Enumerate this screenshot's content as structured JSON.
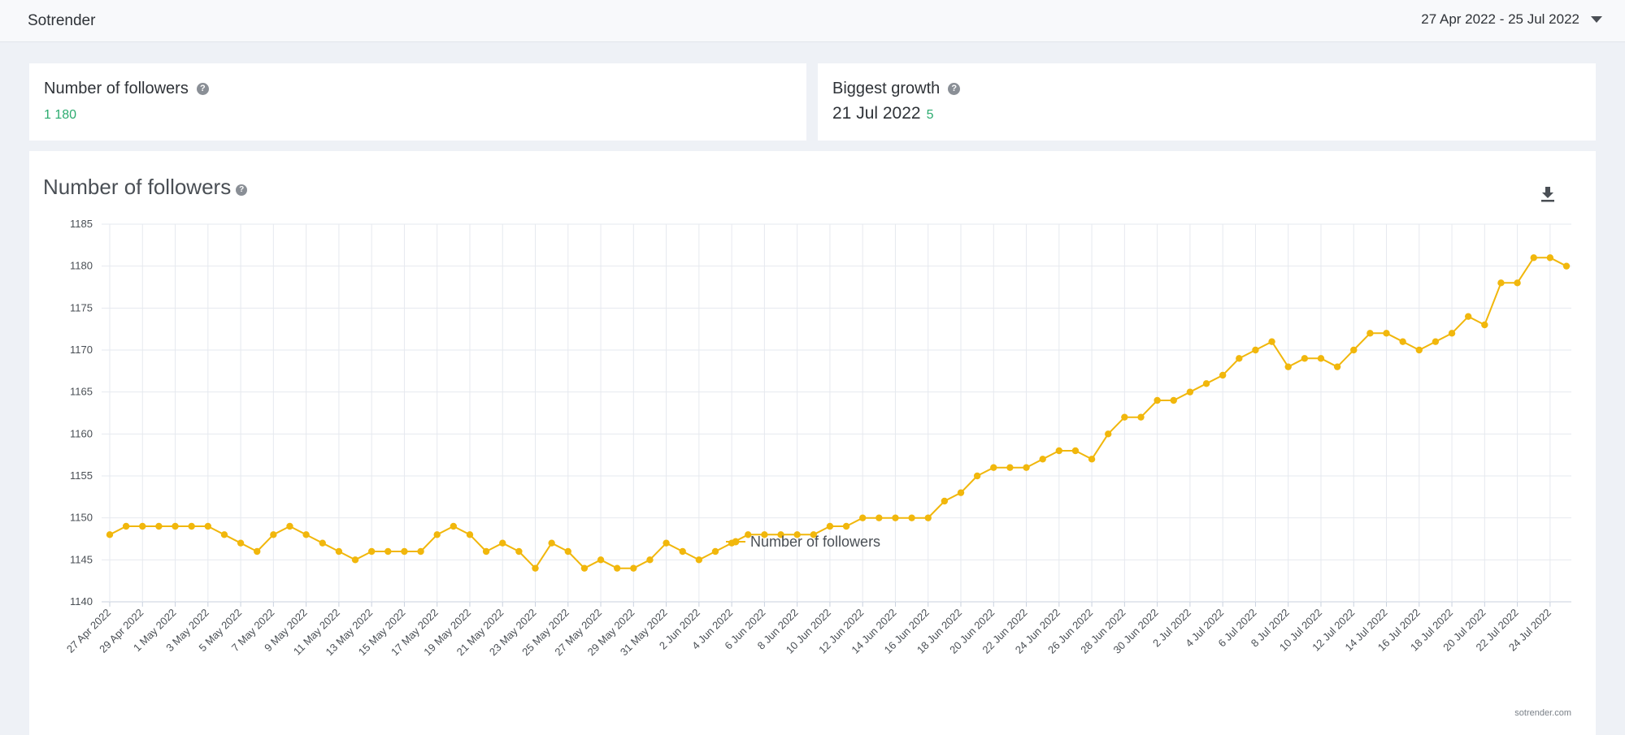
{
  "header": {
    "brand": "Sotrender",
    "date_range": "27 Apr 2022 - 25 Jul 2022"
  },
  "stats": {
    "followers_title": "Number of followers",
    "followers_value": "1 180",
    "growth_title": "Biggest growth",
    "growth_date": "21 Jul 2022",
    "growth_delta": "5"
  },
  "chart_card": {
    "title": "Number of followers",
    "download_icon": "download-icon",
    "credit": "sotrender.com"
  },
  "colors": {
    "series": "#f1b70c",
    "positive": "#2cab6f",
    "grid": "#e6e9ef"
  },
  "chart_data": {
    "type": "line",
    "title": "Number of followers",
    "xlabel": "",
    "ylabel": "",
    "ylim": [
      1140,
      1185
    ],
    "yticks": [
      1140,
      1145,
      1150,
      1155,
      1160,
      1165,
      1170,
      1175,
      1180,
      1185
    ],
    "grid": true,
    "legend": "bottom-center",
    "x_tick_labels": [
      "27 Apr 2022",
      "29 Apr 2022",
      "1 May 2022",
      "3 May 2022",
      "5 May 2022",
      "7 May 2022",
      "9 May 2022",
      "11 May 2022",
      "13 May 2022",
      "15 May 2022",
      "17 May 2022",
      "19 May 2022",
      "21 May 2022",
      "23 May 2022",
      "25 May 2022",
      "27 May 2022",
      "29 May 2022",
      "31 May 2022",
      "2 Jun 2022",
      "4 Jun 2022",
      "6 Jun 2022",
      "8 Jun 2022",
      "10 Jun 2022",
      "12 Jun 2022",
      "14 Jun 2022",
      "16 Jun 2022",
      "18 Jun 2022",
      "20 Jun 2022",
      "22 Jun 2022",
      "24 Jun 2022",
      "26 Jun 2022",
      "28 Jun 2022",
      "30 Jun 2022",
      "2 Jul 2022",
      "4 Jul 2022",
      "6 Jul 2022",
      "8 Jul 2022",
      "10 Jul 2022",
      "12 Jul 2022",
      "14 Jul 2022",
      "16 Jul 2022",
      "18 Jul 2022",
      "20 Jul 2022",
      "22 Jul 2022",
      "24 Jul 2022"
    ],
    "x_start": "27 Apr 2022",
    "x_end": "25 Jul 2022",
    "series": [
      {
        "name": "Number of followers",
        "color": "#f1b70c",
        "values": [
          1148,
          1149,
          1149,
          1149,
          1149,
          1149,
          1149,
          1148,
          1147,
          1146,
          1148,
          1149,
          1148,
          1147,
          1146,
          1145,
          1146,
          1146,
          1146,
          1146,
          1148,
          1149,
          1148,
          1146,
          1147,
          1146,
          1144,
          1147,
          1146,
          1144,
          1145,
          1144,
          1144,
          1145,
          1147,
          1146,
          1145,
          1146,
          1147,
          1148,
          1148,
          1148,
          1148,
          1148,
          1149,
          1149,
          1150,
          1150,
          1150,
          1150,
          1150,
          1152,
          1153,
          1155,
          1156,
          1156,
          1156,
          1157,
          1158,
          1158,
          1157,
          1160,
          1162,
          1162,
          1164,
          1164,
          1165,
          1166,
          1167,
          1169,
          1170,
          1171,
          1168,
          1169,
          1169,
          1168,
          1170,
          1172,
          1172,
          1171,
          1170,
          1171,
          1172,
          1174,
          1173,
          1178,
          1178,
          1181,
          1181,
          1180
        ]
      }
    ]
  }
}
